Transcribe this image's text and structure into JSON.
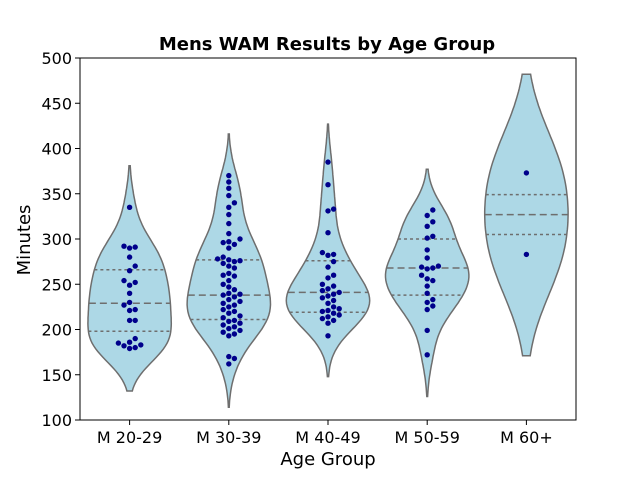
{
  "chart_data": {
    "type": "violin",
    "title": "Mens WAM Results by Age Group",
    "xlabel": "Age Group",
    "ylabel": "Minutes",
    "ylim": [
      100,
      500
    ],
    "yticks": [
      100,
      150,
      200,
      250,
      300,
      350,
      400,
      450,
      500
    ],
    "grid": false,
    "colors": {
      "violin_fill": "#add8e6",
      "violin_edge": "#6e6e6e",
      "points": "#00008b"
    },
    "categories": [
      "M 20-29",
      "M 30-39",
      "M 40-49",
      "M 50-59",
      "M 60+"
    ],
    "groups": [
      {
        "label": "M 20-29",
        "min": 132,
        "max": 381,
        "quartiles": [
          198,
          229,
          266
        ],
        "points": [
          335,
          292,
          291,
          290,
          280,
          270,
          265,
          254,
          252,
          249,
          240,
          230,
          227,
          222,
          221,
          210,
          210,
          190,
          186,
          185,
          183,
          182,
          180,
          179
        ]
      },
      {
        "label": "M 30-39",
        "min": 114,
        "max": 416,
        "quartiles": [
          211,
          238,
          277
        ],
        "points": [
          370,
          363,
          356,
          348,
          340,
          335,
          327,
          317,
          306,
          300,
          297,
          296,
          294,
          290,
          280,
          278,
          277,
          276,
          275,
          273,
          270,
          268,
          262,
          260,
          259,
          254,
          250,
          247,
          244,
          240,
          239,
          238,
          236,
          233,
          231,
          229,
          227,
          225,
          222,
          220,
          218,
          215,
          213,
          210,
          209,
          207,
          205,
          203,
          201,
          199,
          197,
          195,
          193,
          170,
          168,
          162
        ]
      },
      {
        "label": "M 40-49",
        "min": 148,
        "max": 427,
        "quartiles": [
          219,
          241,
          276
        ],
        "points": [
          385,
          360,
          333,
          331,
          307,
          285,
          283,
          282,
          275,
          269,
          260,
          257,
          250,
          248,
          245,
          243,
          241,
          239,
          237,
          235,
          232,
          229,
          225,
          223,
          221,
          220,
          218,
          216,
          214,
          212,
          210,
          207,
          193
        ]
      },
      {
        "label": "M 50-59",
        "min": 126,
        "max": 377,
        "quartiles": [
          238,
          268,
          300
        ],
        "points": [
          332,
          326,
          319,
          314,
          303,
          301,
          288,
          279,
          270,
          269,
          268,
          267,
          260,
          256,
          254,
          248,
          240,
          233,
          230,
          226,
          222,
          199,
          172
        ]
      },
      {
        "label": "M 60+",
        "min": 171,
        "max": 482,
        "quartiles": [
          305,
          327,
          349
        ],
        "points": [
          373,
          283
        ]
      }
    ]
  }
}
